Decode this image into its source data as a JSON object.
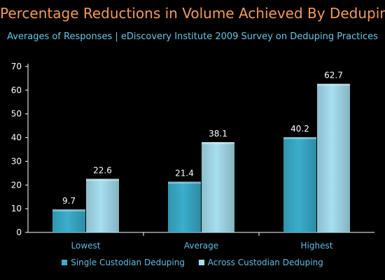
{
  "colors": {
    "background": "#000000",
    "title": "#f29a5c",
    "subtitle": "#69c6e6",
    "axis_text": "#ffffff",
    "category_text": "#5fbde0",
    "legend_text": "#5fbde0",
    "value_label": "#ffffff",
    "series_single": "#3aaecc",
    "series_across": "#a6dff0"
  },
  "chart_data": {
    "type": "bar",
    "title": "Percentage Reductions in Volume Achieved By Deduping",
    "subtitle": "Averages of Responses | eDiscovery Institute 2009 Survey on Deduping Practices",
    "categories": [
      "Lowest",
      "Average",
      "Highest"
    ],
    "series": [
      {
        "name": "Single Custodian Deduping",
        "values": [
          9.7,
          21.4,
          40.2
        ],
        "value_labels": [
          "9.7",
          "21.4",
          "40.2"
        ]
      },
      {
        "name": "Across Custodian Deduping",
        "values": [
          22.6,
          38.1,
          62.7
        ],
        "value_labels": [
          "22.6",
          "38.1",
          "62.7"
        ]
      }
    ],
    "ylim": [
      0,
      70
    ],
    "yticks": [
      0,
      10,
      20,
      30,
      40,
      50,
      60,
      70
    ],
    "xlabel": "",
    "ylabel": "",
    "grid": false,
    "legend_position": "bottom"
  }
}
